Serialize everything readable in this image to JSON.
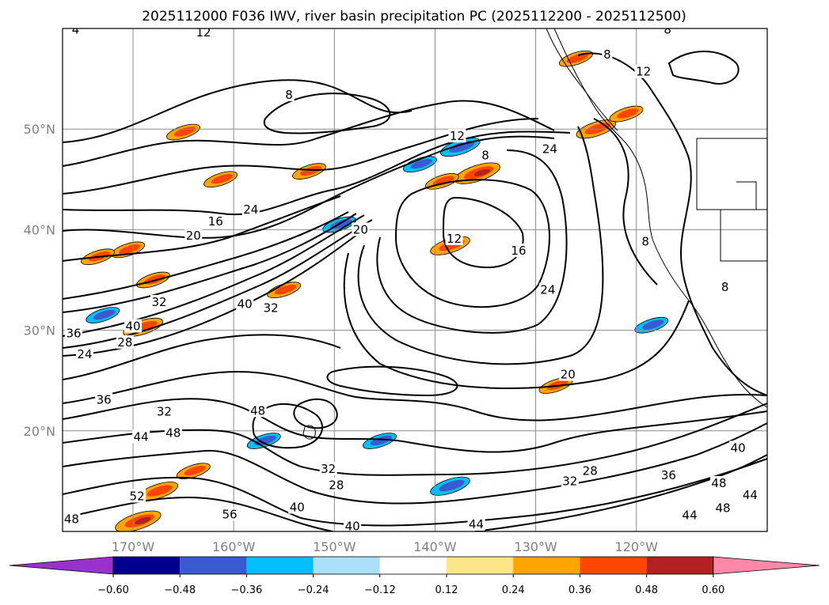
{
  "chart_data": {
    "type": "contour-map",
    "title": "2025112000 F036 IWV, river basin precipitation PC (2025112200 - 2025112500)",
    "lon_range": [
      -177,
      -107
    ],
    "lat_range": [
      10,
      60
    ],
    "lon_ticks": [
      {
        "value": -170,
        "label": "170°W"
      },
      {
        "value": -160,
        "label": "160°W"
      },
      {
        "value": -150,
        "label": "150°W"
      },
      {
        "value": -140,
        "label": "140°W"
      },
      {
        "value": -130,
        "label": "130°W"
      },
      {
        "value": -120,
        "label": "120°W"
      }
    ],
    "lat_ticks": [
      {
        "value": 20,
        "label": "20°N"
      },
      {
        "value": 30,
        "label": "30°N"
      },
      {
        "value": 40,
        "label": "40°N"
      },
      {
        "value": 50,
        "label": "50°N"
      }
    ],
    "grid": true,
    "iwv_contour_labels": [
      {
        "text": "12",
        "lon": -163,
        "lat": 59.6
      },
      {
        "text": "8",
        "lon": -135,
        "lat": 47.4
      },
      {
        "text": "8",
        "lon": -154.5,
        "lat": 53.4
      },
      {
        "text": "12",
        "lon": -137.8,
        "lat": 49.3
      },
      {
        "text": "24",
        "lon": -128.6,
        "lat": 48.0
      },
      {
        "text": "12",
        "lon": -138.1,
        "lat": 39.1
      },
      {
        "text": "16",
        "lon": -161.8,
        "lat": 40.8
      },
      {
        "text": "20",
        "lon": -164.0,
        "lat": 39.4
      },
      {
        "text": "24",
        "lon": -158.3,
        "lat": 42.0
      },
      {
        "text": "20",
        "lon": -147.4,
        "lat": 40.0
      },
      {
        "text": "16",
        "lon": -131.7,
        "lat": 37.9
      },
      {
        "text": "24",
        "lon": -128.8,
        "lat": 34.0
      },
      {
        "text": "32",
        "lon": -167.4,
        "lat": 32.8
      },
      {
        "text": "40",
        "lon": -158.9,
        "lat": 32.6
      },
      {
        "text": "32",
        "lon": -156.3,
        "lat": 32.2
      },
      {
        "text": "36",
        "lon": -175.9,
        "lat": 29.7
      },
      {
        "text": "40",
        "lon": -170.0,
        "lat": 30.4
      },
      {
        "text": "28",
        "lon": -170.8,
        "lat": 28.8
      },
      {
        "text": "24",
        "lon": -174.8,
        "lat": 27.6
      },
      {
        "text": "20",
        "lon": -126.8,
        "lat": 25.6
      },
      {
        "text": "36",
        "lon": -172.9,
        "lat": 23.1
      },
      {
        "text": "32",
        "lon": -166.9,
        "lat": 21.9
      },
      {
        "text": "44",
        "lon": -169.2,
        "lat": 19.4
      },
      {
        "text": "48",
        "lon": -166.0,
        "lat": 19.8
      },
      {
        "text": "48",
        "lon": -157.6,
        "lat": 22.0
      },
      {
        "text": "32",
        "lon": -150.6,
        "lat": 16.2
      },
      {
        "text": "28",
        "lon": -149.8,
        "lat": 14.6
      },
      {
        "text": "28",
        "lon": -124.6,
        "lat": 16.0
      },
      {
        "text": "32",
        "lon": -126.6,
        "lat": 15.0
      },
      {
        "text": "36",
        "lon": -116.8,
        "lat": 15.6
      },
      {
        "text": "40",
        "lon": -109.9,
        "lat": 18.3
      },
      {
        "text": "48",
        "lon": -111.8,
        "lat": 14.8
      },
      {
        "text": "44",
        "lon": -108.7,
        "lat": 13.6
      },
      {
        "text": "48",
        "lon": -111.4,
        "lat": 12.3
      },
      {
        "text": "44",
        "lon": -114.7,
        "lat": 11.6
      },
      {
        "text": "44",
        "lon": -135.9,
        "lat": 10.7
      },
      {
        "text": "40",
        "lon": -148.2,
        "lat": 10.5
      },
      {
        "text": "40",
        "lon": -153.7,
        "lat": 12.4
      },
      {
        "text": "52",
        "lon": -169.6,
        "lat": 13.5
      },
      {
        "text": "56",
        "lon": -160.4,
        "lat": 11.7
      },
      {
        "text": "48",
        "lon": -176.1,
        "lat": 11.2
      },
      {
        "text": "8",
        "lon": -119.1,
        "lat": 38.8
      },
      {
        "text": "12",
        "lon": -119.3,
        "lat": 55.7
      },
      {
        "text": "8",
        "lon": -116.9,
        "lat": 59.9
      },
      {
        "text": "8",
        "lon": -122.9,
        "lat": 57.4
      },
      {
        "text": "4",
        "lon": -175.7,
        "lat": 59.9
      },
      {
        "text": "8",
        "lon": -111.2,
        "lat": 34.3
      }
    ],
    "precip_pc_anomalies": [
      {
        "lon": -135.8,
        "lat": 45.6,
        "level": 0.5
      },
      {
        "lon": -139.3,
        "lat": 44.8,
        "level": 0.3
      },
      {
        "lon": -124.0,
        "lat": 50.0,
        "level": 0.4
      },
      {
        "lon": -121.0,
        "lat": 51.5,
        "level": 0.3
      },
      {
        "lon": -152.5,
        "lat": 45.8,
        "level": 0.3
      },
      {
        "lon": -169.0,
        "lat": 30.3,
        "level": 0.4
      },
      {
        "lon": -168.0,
        "lat": 35.0,
        "level": 0.3
      },
      {
        "lon": -165.0,
        "lat": 49.7,
        "level": 0.3
      },
      {
        "lon": -161.3,
        "lat": 45.0,
        "level": 0.3
      },
      {
        "lon": -170.5,
        "lat": 38.0,
        "level": 0.3
      },
      {
        "lon": -173.5,
        "lat": 37.3,
        "level": 0.3
      },
      {
        "lon": -167.5,
        "lat": 14.0,
        "level": 0.4
      },
      {
        "lon": -169.5,
        "lat": 11.0,
        "level": 0.5
      },
      {
        "lon": -164.0,
        "lat": 16.0,
        "level": 0.3
      },
      {
        "lon": -138.5,
        "lat": 38.4,
        "level": 0.4
      },
      {
        "lon": -126.0,
        "lat": 57.0,
        "level": 0.3
      },
      {
        "lon": -128.0,
        "lat": 24.5,
        "level": 0.3
      },
      {
        "lon": -155.0,
        "lat": 34.0,
        "level": 0.3
      },
      {
        "lon": -137.5,
        "lat": 48.2,
        "level": -0.4
      },
      {
        "lon": -141.5,
        "lat": 46.5,
        "level": -0.3
      },
      {
        "lon": -149.5,
        "lat": 40.5,
        "level": -0.3
      },
      {
        "lon": -138.5,
        "lat": 14.5,
        "level": -0.4
      },
      {
        "lon": -118.5,
        "lat": 30.5,
        "level": -0.3
      },
      {
        "lon": -145.5,
        "lat": 19.0,
        "level": -0.3
      },
      {
        "lon": -173.0,
        "lat": 31.5,
        "level": -0.3
      },
      {
        "lon": -157.0,
        "lat": 19.0,
        "level": -0.3
      }
    ],
    "colorbar": {
      "ticks": [
        "−0.60",
        "−0.48",
        "−0.36",
        "−0.24",
        "−0.12",
        "0.12",
        "0.24",
        "0.36",
        "0.48",
        "0.60"
      ],
      "colors": [
        "#9832cc",
        "#00008b",
        "#3a5bcf",
        "#00bfff",
        "#abe0fb",
        "#ffffff",
        "#fde68a",
        "#ffa500",
        "#ff4500",
        "#b22222",
        "#ff88a8"
      ],
      "extend": "both"
    }
  }
}
